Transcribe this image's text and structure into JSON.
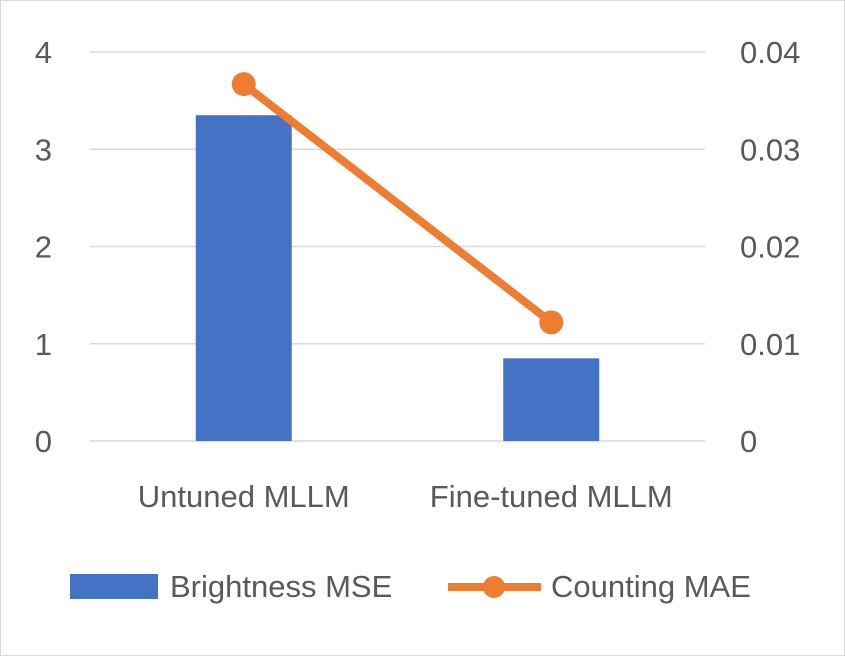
{
  "chart_data": {
    "type": "bar",
    "categories": [
      "Untuned MLLM",
      "Fine-tuned MLLM"
    ],
    "series": [
      {
        "name": "Brightness MSE",
        "type": "bar",
        "axis": "left",
        "values": [
          3.35,
          0.85
        ],
        "color": "#4472C4"
      },
      {
        "name": "Counting MAE",
        "type": "line",
        "axis": "right",
        "values": [
          0.0367,
          0.0122
        ],
        "color": "#ED7D31"
      }
    ],
    "y_left": {
      "ylim": [
        0,
        4
      ],
      "ticks": [
        "0",
        "1",
        "2",
        "3",
        "4"
      ]
    },
    "y_right": {
      "ylim": [
        0,
        0.04
      ],
      "ticks": [
        "0",
        "0.01",
        "0.02",
        "0.03",
        "0.04"
      ]
    },
    "grid": true,
    "legend": "bottom"
  }
}
